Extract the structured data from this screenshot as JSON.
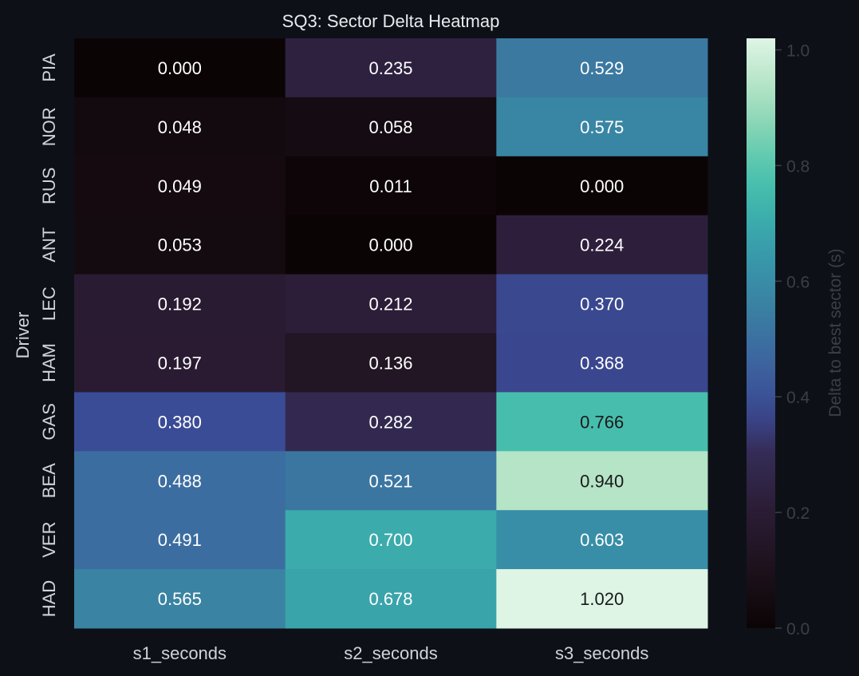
{
  "colors": {
    "background": "#0d1117",
    "tick_text": "#d0d4da",
    "title_text": "#e8eaed",
    "colorbar_label": "#3a3f47",
    "colorbar_ticks": "#3a3f47",
    "cell_text_light": "#ffffff",
    "cell_text_dark": "#1a1a1a",
    "colormap": "mako"
  },
  "chart_data": {
    "type": "heatmap",
    "title": "SQ3: Sector Delta Heatmap",
    "xlabel": "",
    "ylabel": "Driver",
    "columns": [
      "s1_seconds",
      "s2_seconds",
      "s3_seconds"
    ],
    "rows": [
      "PIA",
      "NOR",
      "RUS",
      "ANT",
      "LEC",
      "HAM",
      "GAS",
      "BEA",
      "VER",
      "HAD"
    ],
    "values": [
      [
        0.0,
        0.235,
        0.529
      ],
      [
        0.048,
        0.058,
        0.575
      ],
      [
        0.049,
        0.011,
        0.0
      ],
      [
        0.053,
        0.0,
        0.224
      ],
      [
        0.192,
        0.212,
        0.37
      ],
      [
        0.197,
        0.136,
        0.368
      ],
      [
        0.38,
        0.282,
        0.766
      ],
      [
        0.488,
        0.521,
        0.94
      ],
      [
        0.491,
        0.7,
        0.603
      ],
      [
        0.565,
        0.678,
        1.02
      ]
    ],
    "value_labels": [
      [
        "0.000",
        "0.235",
        "0.529"
      ],
      [
        "0.048",
        "0.058",
        "0.575"
      ],
      [
        "0.049",
        "0.011",
        "0.000"
      ],
      [
        "0.053",
        "0.000",
        "0.224"
      ],
      [
        "0.192",
        "0.212",
        "0.370"
      ],
      [
        "0.197",
        "0.136",
        "0.368"
      ],
      [
        "0.380",
        "0.282",
        "0.766"
      ],
      [
        "0.488",
        "0.521",
        "0.940"
      ],
      [
        "0.491",
        "0.700",
        "0.603"
      ],
      [
        "0.565",
        "0.678",
        "1.020"
      ]
    ],
    "colorbar": {
      "label": "Delta to best sector (s)",
      "vmin": 0.0,
      "vmax": 1.02,
      "ticks": [
        0.0,
        0.2,
        0.4,
        0.6,
        0.8,
        1.0
      ],
      "tick_labels": [
        "0.0",
        "0.2",
        "0.4",
        "0.6",
        "0.8",
        "1.0"
      ]
    },
    "grid": false,
    "legend": "colorbar-right"
  }
}
